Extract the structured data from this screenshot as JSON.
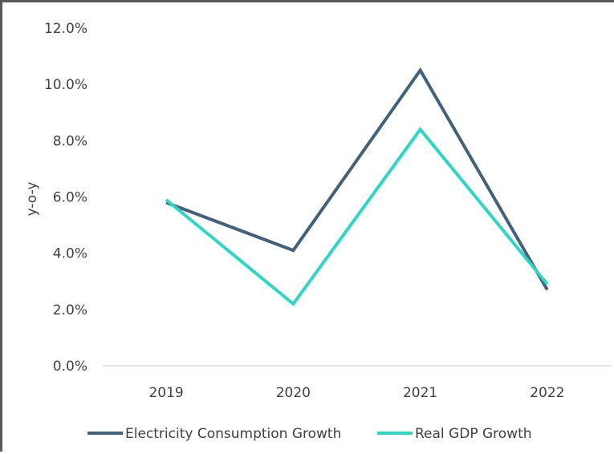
{
  "chart_data": {
    "type": "line",
    "title": "",
    "xlabel": "",
    "ylabel": "y-o-y",
    "categories": [
      "2019",
      "2020",
      "2021",
      "2022"
    ],
    "ylim": [
      0,
      12
    ],
    "yticks": [
      "0.0%",
      "2.0%",
      "4.0%",
      "6.0%",
      "8.0%",
      "10.0%",
      "12.0%"
    ],
    "grid": false,
    "legend_position": "bottom",
    "series": [
      {
        "name": "Electricity Consumption Growth",
        "color": "#44617b",
        "values": [
          5.8,
          4.1,
          10.5,
          2.7
        ]
      },
      {
        "name": "Real GDP Growth",
        "color": "#2fd5c5",
        "values": [
          5.9,
          2.2,
          8.4,
          2.9
        ]
      }
    ]
  }
}
